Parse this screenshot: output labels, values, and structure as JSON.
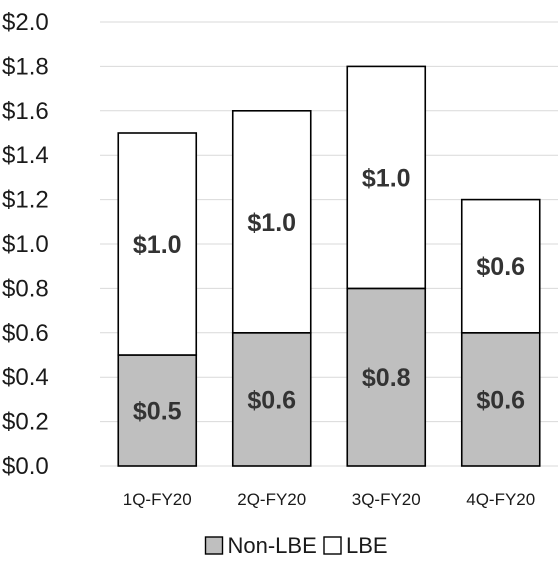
{
  "chart_data": {
    "type": "bar",
    "stacked": true,
    "categories": [
      "1Q-FY20",
      "2Q-FY20",
      "3Q-FY20",
      "4Q-FY20"
    ],
    "series": [
      {
        "name": "Non-LBE",
        "values": [
          0.5,
          0.6,
          0.8,
          0.6
        ],
        "labels": [
          "$0.5",
          "$0.6",
          "$0.8",
          "$0.6"
        ],
        "color": "#bfbfbf"
      },
      {
        "name": "LBE",
        "values": [
          1.0,
          1.0,
          1.0,
          0.6
        ],
        "labels": [
          "$1.0",
          "$1.0",
          "$1.0",
          "$0.6"
        ],
        "color": "#ffffff"
      }
    ],
    "yticks": [
      "$0.0",
      "$0.2",
      "$0.4",
      "$0.6",
      "$0.8",
      "$1.0",
      "$1.2",
      "$1.4",
      "$1.6",
      "$1.8",
      "$2.0"
    ],
    "ylim": [
      0,
      2.0
    ],
    "grid": true,
    "legend": "bottom",
    "title": "",
    "xlabel": "",
    "ylabel": ""
  }
}
